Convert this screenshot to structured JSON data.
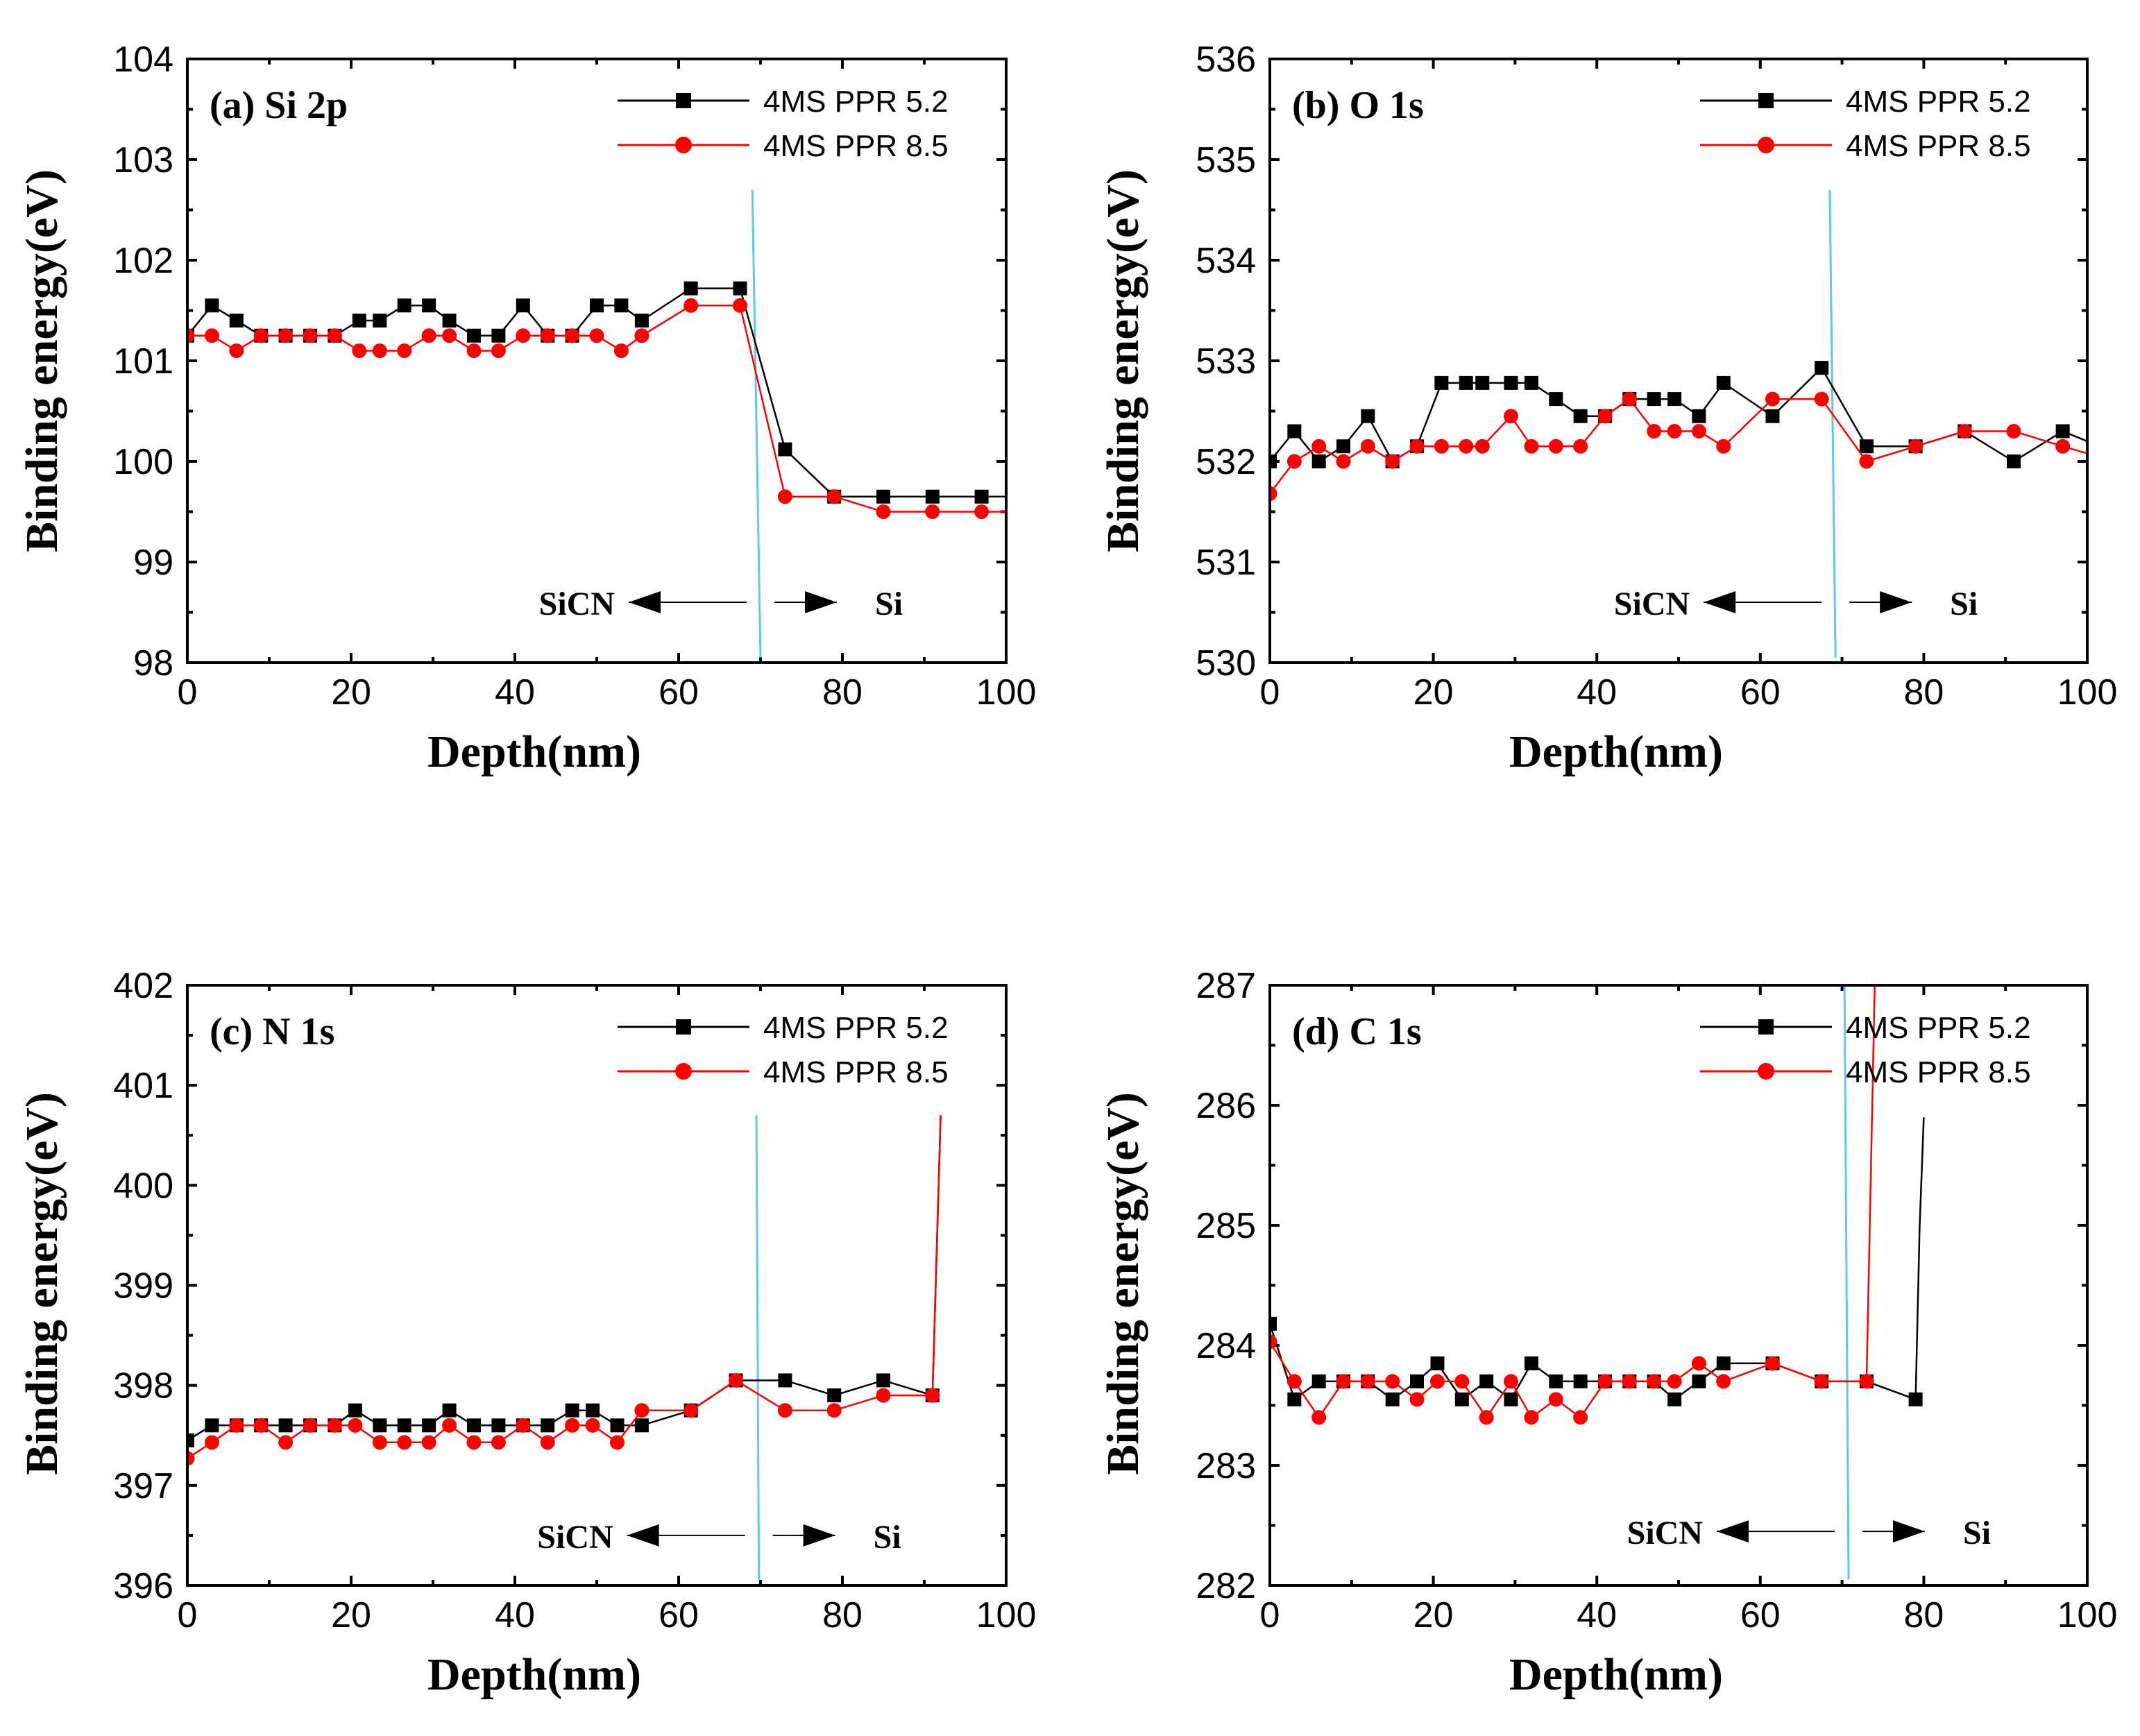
{
  "chart_data": [
    {
      "type": "line",
      "panel": "a",
      "title": "(a) Si 2p",
      "xlabel": "Depth(nm)",
      "ylabel": "Binding energy(eV)",
      "xlim": [
        0,
        100
      ],
      "ylim": [
        98,
        104
      ],
      "xticks": [
        0,
        20,
        40,
        60,
        80,
        100
      ],
      "yticks": [
        98,
        99,
        100,
        101,
        102,
        103,
        104
      ],
      "interface": {
        "x_top": 69,
        "x_bottom": 70,
        "y_top": 102.7,
        "y_bottom": 98.05
      },
      "regions": {
        "left": "SiCN",
        "right": "Si",
        "y": 98.6,
        "left_x": 54,
        "right_x": 74
      },
      "legend": [
        "4MS PPR 5.2",
        "4MS PPR 8.5"
      ],
      "series": [
        {
          "name": "4MS PPR 5.2",
          "color": "#000000",
          "marker": "square",
          "x": [
            0,
            3,
            6,
            9,
            12,
            15,
            18,
            21,
            23.5,
            26.5,
            29.5,
            32,
            35,
            38,
            41,
            44,
            47,
            50,
            53,
            55.5,
            61.5,
            67.5,
            73,
            79,
            85,
            91,
            97,
            100
          ],
          "y": [
            101.25,
            101.55,
            101.4,
            101.25,
            101.25,
            101.25,
            101.25,
            101.4,
            101.4,
            101.55,
            101.55,
            101.4,
            101.25,
            101.25,
            101.55,
            101.25,
            101.25,
            101.55,
            101.55,
            101.4,
            101.72,
            101.72,
            100.12,
            99.65,
            99.65,
            99.65,
            99.65,
            99.65
          ],
          "markers": [
            1,
            1,
            1,
            1,
            1,
            1,
            1,
            1,
            1,
            1,
            1,
            1,
            1,
            1,
            1,
            1,
            1,
            1,
            1,
            1,
            1,
            1,
            1,
            1,
            1,
            1,
            1,
            0
          ]
        },
        {
          "name": "4MS PPR 8.5",
          "color": "#ff0000",
          "marker": "circle",
          "x": [
            0,
            3,
            6,
            9,
            12,
            15,
            18,
            21,
            23.5,
            26.5,
            29.5,
            32,
            35,
            38,
            41,
            44,
            47,
            50,
            53,
            55.5,
            61.5,
            67.5,
            73,
            79,
            85,
            91,
            97,
            100
          ],
          "y": [
            101.25,
            101.25,
            101.1,
            101.25,
            101.25,
            101.25,
            101.25,
            101.1,
            101.1,
            101.1,
            101.25,
            101.25,
            101.1,
            101.1,
            101.25,
            101.25,
            101.25,
            101.25,
            101.1,
            101.25,
            101.55,
            101.55,
            99.65,
            99.65,
            99.5,
            99.5,
            99.5,
            99.5
          ],
          "markers": [
            1,
            1,
            1,
            1,
            1,
            1,
            1,
            1,
            1,
            1,
            1,
            1,
            1,
            1,
            1,
            1,
            1,
            1,
            1,
            1,
            1,
            1,
            1,
            1,
            1,
            1,
            1,
            0
          ]
        }
      ]
    },
    {
      "type": "line",
      "panel": "b",
      "title": "(b) O 1s",
      "xlabel": "Depth(nm)",
      "ylabel": "Binding energy(eV)",
      "xlim": [
        0,
        100
      ],
      "ylim": [
        530,
        536
      ],
      "xticks": [
        0,
        20,
        40,
        60,
        80,
        100
      ],
      "yticks": [
        530,
        531,
        532,
        533,
        534,
        535,
        536
      ],
      "interface": {
        "x_top": 68.5,
        "x_bottom": 69.2,
        "y_top": 534.7,
        "y_bottom": 530.05
      },
      "regions": {
        "left": "SiCN",
        "right": "Si",
        "y": 530.6,
        "left_x": 55,
        "right_x": 74
      },
      "legend": [
        "4MS PPR 5.2",
        "4MS PPR 8.5"
      ],
      "series": [
        {
          "name": "4MS PPR 5.2",
          "color": "#000000",
          "marker": "square",
          "x": [
            0,
            3,
            6,
            9,
            12,
            15,
            18,
            21,
            24,
            26,
            29.5,
            32,
            35,
            38,
            41,
            44,
            47,
            49.5,
            52.5,
            55.5,
            61.5,
            67.5,
            73,
            79,
            85,
            91,
            97,
            100
          ],
          "y": [
            532.0,
            532.3,
            532.0,
            532.15,
            532.45,
            532.0,
            532.15,
            532.78,
            532.78,
            532.78,
            532.78,
            532.78,
            532.62,
            532.45,
            532.45,
            532.62,
            532.62,
            532.62,
            532.45,
            532.78,
            532.45,
            532.93,
            532.15,
            532.15,
            532.3,
            532.0,
            532.3,
            532.2
          ],
          "markers": [
            1,
            1,
            1,
            1,
            1,
            1,
            1,
            1,
            1,
            1,
            1,
            1,
            1,
            1,
            1,
            1,
            1,
            1,
            1,
            1,
            1,
            1,
            1,
            1,
            1,
            1,
            1,
            0
          ]
        },
        {
          "name": "4MS PPR 8.5",
          "color": "#ff0000",
          "marker": "circle",
          "x": [
            0,
            3,
            6,
            9,
            12,
            15,
            18,
            21,
            24,
            26,
            29.5,
            32,
            35,
            38,
            41,
            44,
            47,
            49.5,
            52.5,
            55.5,
            61.5,
            67.5,
            73,
            79,
            85,
            91,
            97,
            100
          ],
          "y": [
            531.68,
            532.0,
            532.15,
            532.0,
            532.15,
            532.0,
            532.15,
            532.15,
            532.15,
            532.15,
            532.45,
            532.15,
            532.15,
            532.15,
            532.45,
            532.62,
            532.3,
            532.3,
            532.3,
            532.15,
            532.62,
            532.62,
            532.0,
            532.15,
            532.3,
            532.3,
            532.15,
            532.08
          ],
          "markers": [
            1,
            1,
            1,
            1,
            1,
            1,
            1,
            1,
            1,
            1,
            1,
            1,
            1,
            1,
            1,
            1,
            1,
            1,
            1,
            1,
            1,
            1,
            1,
            1,
            1,
            1,
            1,
            0
          ]
        }
      ]
    },
    {
      "type": "line",
      "panel": "c",
      "title": "(c) N 1s",
      "xlabel": "Depth(nm)",
      "ylabel": "Binding energy(eV)",
      "xlim": [
        0,
        100
      ],
      "ylim": [
        396,
        402
      ],
      "xticks": [
        0,
        20,
        40,
        60,
        80,
        100
      ],
      "yticks": [
        396,
        397,
        398,
        399,
        400,
        401,
        402
      ],
      "interface": {
        "x_top": 69.5,
        "x_bottom": 69.8,
        "y_top": 400.7,
        "y_bottom": 396.05
      },
      "regions": {
        "left": "SiCN",
        "right": "Si",
        "y": 396.5,
        "left_x": 54,
        "right_x": 73
      },
      "legend": [
        "4MS PPR 5.2",
        "4MS PPR 8.5"
      ],
      "series": [
        {
          "name": "4MS PPR 5.2",
          "color": "#000000",
          "marker": "square",
          "x": [
            0,
            3,
            6,
            9,
            12,
            15,
            18,
            20.5,
            23.5,
            26.5,
            29.5,
            32,
            35,
            38,
            41,
            44,
            47,
            49.5,
            52.5,
            55.5,
            61.5,
            67,
            73,
            79,
            85,
            91,
            92
          ],
          "y": [
            397.45,
            397.6,
            397.6,
            397.6,
            397.6,
            397.6,
            397.6,
            397.75,
            397.6,
            397.6,
            397.6,
            397.75,
            397.6,
            397.6,
            397.6,
            397.6,
            397.75,
            397.75,
            397.6,
            397.6,
            397.75,
            398.05,
            398.05,
            397.9,
            398.05,
            397.9,
            400.7
          ],
          "markers": [
            1,
            1,
            1,
            1,
            1,
            1,
            1,
            1,
            1,
            1,
            1,
            1,
            1,
            1,
            1,
            1,
            1,
            1,
            1,
            1,
            1,
            1,
            1,
            1,
            1,
            1,
            0
          ]
        },
        {
          "name": "4MS PPR 8.5",
          "color": "#ff0000",
          "marker": "circle",
          "x": [
            0,
            3,
            6,
            9,
            12,
            15,
            18,
            20.5,
            23.5,
            26.5,
            29.5,
            32,
            35,
            38,
            41,
            44,
            47,
            49.5,
            52.5,
            55.5,
            61.5,
            67,
            73,
            79,
            85,
            91,
            92
          ],
          "y": [
            397.27,
            397.43,
            397.6,
            397.6,
            397.43,
            397.6,
            397.6,
            397.6,
            397.43,
            397.43,
            397.43,
            397.6,
            397.43,
            397.43,
            397.6,
            397.43,
            397.6,
            397.6,
            397.43,
            397.75,
            397.75,
            398.05,
            397.75,
            397.75,
            397.9,
            397.9,
            400.7
          ],
          "markers": [
            1,
            1,
            1,
            1,
            1,
            1,
            1,
            1,
            1,
            1,
            1,
            1,
            1,
            1,
            1,
            1,
            1,
            1,
            1,
            1,
            1,
            1,
            1,
            1,
            1,
            1,
            0
          ]
        }
      ]
    },
    {
      "type": "line",
      "panel": "d",
      "title": "(d) C 1s",
      "xlabel": "Depth(nm)",
      "ylabel": "Binding energy(eV)",
      "xlim": [
        0,
        100
      ],
      "ylim": [
        282,
        287
      ],
      "xticks": [
        0,
        20,
        40,
        60,
        80,
        100
      ],
      "yticks": [
        282,
        283,
        284,
        285,
        286,
        287
      ],
      "interface": {
        "x_top": 70.3,
        "x_bottom": 70.8,
        "y_top": 287.0,
        "y_bottom": 282.05
      },
      "regions": {
        "left": "SiCN",
        "right": "Si",
        "y": 282.45,
        "left_x": 55,
        "right_x": 74
      },
      "legend": [
        "4MS PPR 5.2",
        "4MS PPR 8.5"
      ],
      "series": [
        {
          "name": "4MS PPR 5.2",
          "color": "#000000",
          "marker": "square",
          "x": [
            0,
            3,
            6,
            9,
            12,
            15,
            18,
            20.5,
            23.5,
            26.5,
            29.5,
            32,
            35,
            38,
            41,
            44,
            47,
            49.5,
            52.5,
            55.5,
            61.5,
            67.5,
            73,
            79,
            79.5,
            80
          ],
          "y": [
            284.18,
            283.55,
            283.7,
            283.7,
            283.7,
            283.55,
            283.7,
            283.85,
            283.55,
            283.7,
            283.55,
            283.85,
            283.7,
            283.7,
            283.7,
            283.7,
            283.7,
            283.55,
            283.7,
            283.85,
            283.85,
            283.7,
            283.7,
            283.55,
            285.0,
            285.9
          ],
          "markers": [
            1,
            1,
            1,
            1,
            1,
            1,
            1,
            1,
            1,
            1,
            1,
            1,
            1,
            1,
            1,
            1,
            1,
            1,
            1,
            1,
            1,
            1,
            1,
            1,
            0,
            0
          ]
        },
        {
          "name": "4MS PPR 8.5",
          "color": "#ff0000",
          "marker": "circle",
          "x": [
            0,
            3,
            6,
            9,
            12,
            15,
            18,
            20.5,
            23.5,
            26.5,
            29.5,
            32,
            35,
            38,
            41,
            44,
            47,
            49.5,
            52.5,
            55.5,
            61.5,
            67.5,
            73,
            74
          ],
          "y": [
            284.03,
            283.7,
            283.4,
            283.7,
            283.7,
            283.7,
            283.55,
            283.7,
            283.7,
            283.4,
            283.7,
            283.4,
            283.55,
            283.4,
            283.7,
            283.7,
            283.7,
            283.7,
            283.85,
            283.7,
            283.85,
            283.7,
            283.7,
            287.0
          ],
          "markers": [
            1,
            1,
            1,
            1,
            1,
            1,
            1,
            1,
            1,
            1,
            1,
            1,
            1,
            1,
            1,
            1,
            1,
            1,
            1,
            1,
            1,
            1,
            1,
            0
          ]
        }
      ]
    }
  ]
}
